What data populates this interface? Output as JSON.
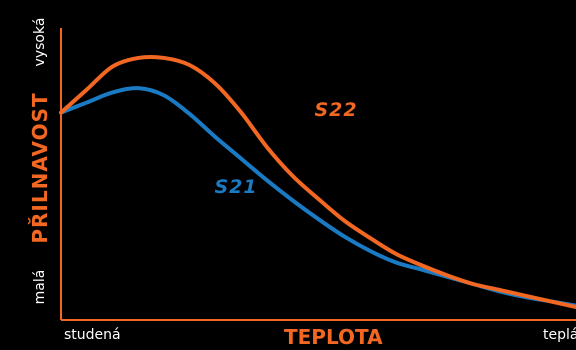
{
  "chart_data": {
    "type": "line",
    "title": "",
    "xlabel": "TEPLOTA",
    "ylabel": "PŘILNAVOST",
    "x_ticks": [
      "studená",
      "teplá"
    ],
    "y_ticks": [
      "malá",
      "vysoká"
    ],
    "xlim": [
      0,
      100
    ],
    "ylim": [
      0,
      100
    ],
    "grid": false,
    "legend": "inline labels",
    "axis_color": "#f26722",
    "series": [
      {
        "name": "S22",
        "color": "#f26722",
        "x": [
          0,
          5,
          10,
          15,
          20,
          25,
          30,
          35,
          40,
          45,
          50,
          55,
          60,
          65,
          70,
          75,
          80,
          85,
          90,
          95,
          100
        ],
        "y": [
          72,
          80,
          88,
          91,
          91,
          88.5,
          82,
          72,
          60,
          50,
          42,
          34.5,
          28.5,
          23,
          19,
          15.5,
          12.5,
          10.5,
          8.5,
          6.5,
          4.5
        ]
      },
      {
        "name": "S21",
        "color": "#1a7bc4",
        "x": [
          0,
          5,
          10,
          15,
          20,
          25,
          30,
          35,
          40,
          45,
          50,
          55,
          60,
          65,
          70,
          75,
          80,
          85,
          90,
          95,
          100
        ],
        "y": [
          72,
          75.5,
          79,
          80.5,
          78,
          71.5,
          63.5,
          56,
          48.5,
          41.5,
          35,
          29,
          24,
          20,
          17.5,
          15,
          12.5,
          10,
          8,
          6.5,
          5
        ]
      }
    ]
  }
}
